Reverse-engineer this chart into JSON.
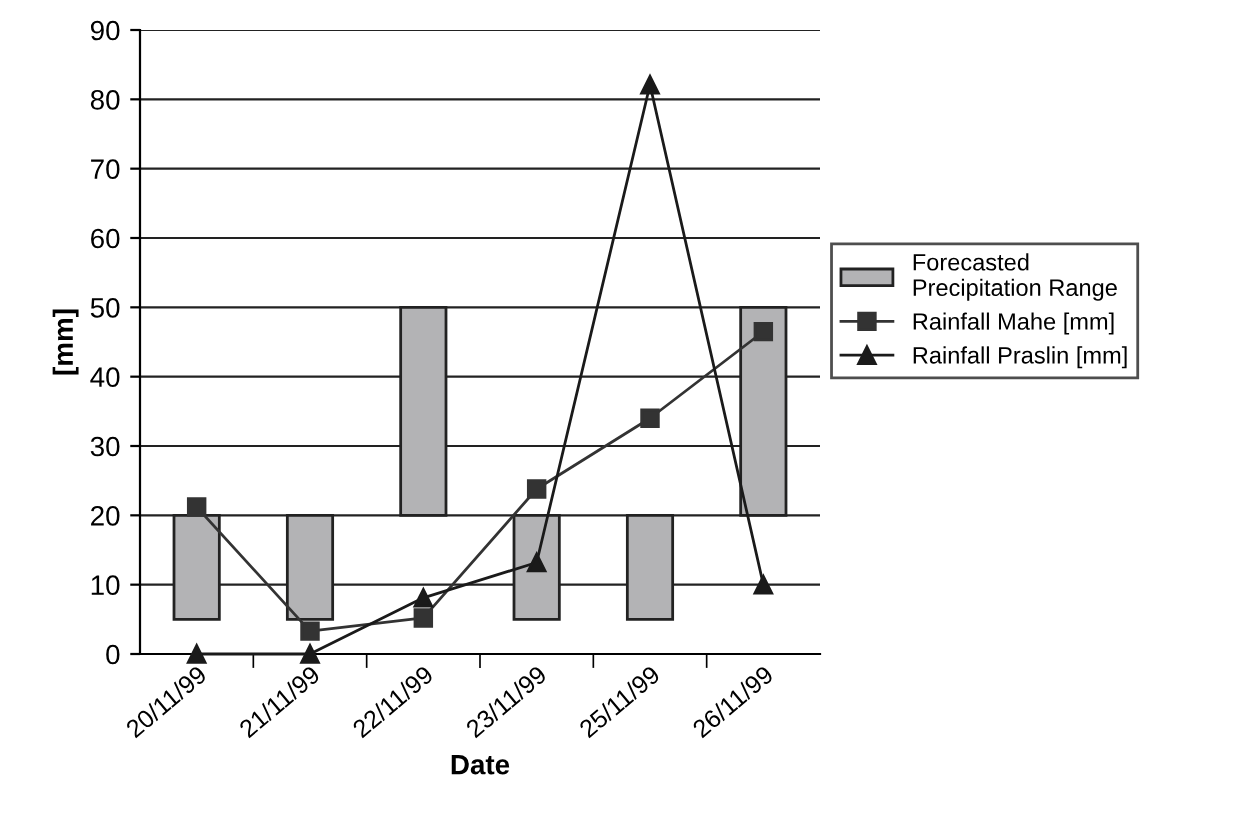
{
  "chart_data": {
    "type": "bar",
    "xlabel": "Date",
    "ylabel": "[mm]",
    "categories": [
      "20/11/99",
      "21/11/99",
      "22/11/99",
      "23/11/99",
      "25/11/99",
      "26/11/99"
    ],
    "series": [
      {
        "name": "Forecasted Precipitation Range",
        "color": "#b3b3b5",
        "values": [
          15,
          15,
          30,
          15,
          15,
          30
        ],
        "base": [
          5,
          5,
          20,
          5,
          5,
          20
        ]
      },
      {
        "name": "Rainfall Mahe [mm]",
        "type": "line",
        "color": "#333333",
        "marker": "square",
        "values": [
          21.2,
          3.3,
          5.2,
          23.8,
          34,
          46.5
        ]
      },
      {
        "name": "Rainfall Praslin [mm]",
        "type": "line",
        "color": "#1a1a1a",
        "marker": "triangle",
        "values": [
          0,
          0,
          8.1,
          13.2,
          82.1,
          10
        ]
      }
    ],
    "ylim": [
      0,
      90
    ],
    "yticks": [
      0,
      10,
      20,
      30,
      40,
      50,
      60,
      70,
      80,
      90
    ],
    "grid": "y",
    "legend": "right"
  }
}
